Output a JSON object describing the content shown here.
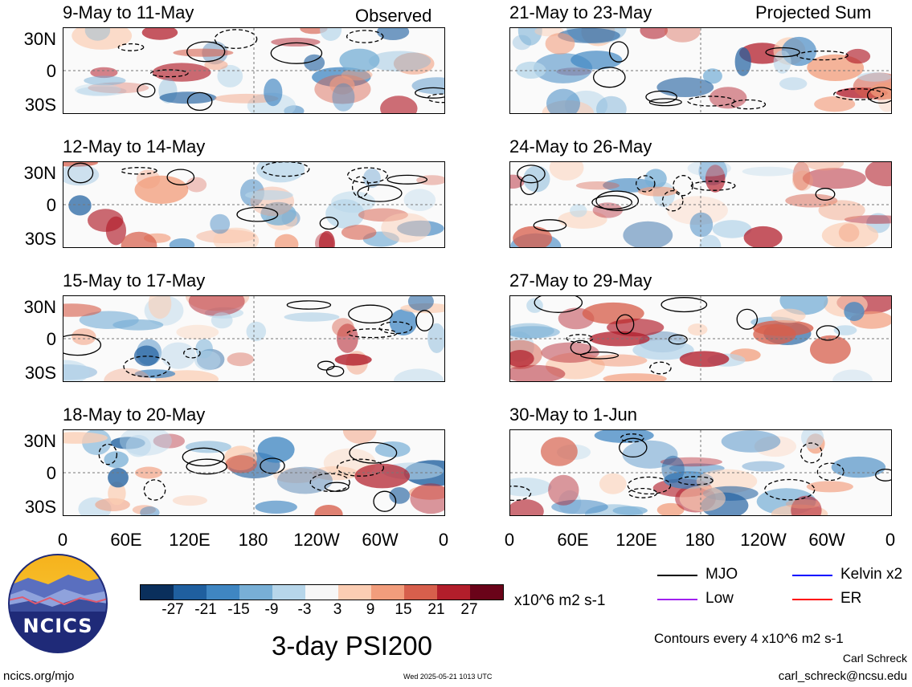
{
  "tags": {
    "observed": "Observed",
    "projected": "Projected Sum"
  },
  "panels_left": [
    "9-May to 11-May",
    "12-May to 14-May",
    "15-May to 17-May",
    "18-May to 20-May"
  ],
  "panels_right": [
    "21-May to 23-May",
    "24-May to 26-May",
    "27-May to 29-May",
    "30-May to 1-Jun"
  ],
  "lat_labels": [
    "30N",
    "0",
    "30S"
  ],
  "lon_labels": [
    "0",
    "60E",
    "120E",
    "180",
    "120W",
    "60W",
    "0"
  ],
  "colorbar": {
    "ticks": [
      "-27",
      "-21",
      "-15",
      "-9",
      "-3",
      "3",
      "9",
      "15",
      "21",
      "27"
    ],
    "units": "x10^6 m2 s-1",
    "colors": [
      "#0a2f5c",
      "#1f5f9f",
      "#3f86c2",
      "#78afd6",
      "#b7d6ea",
      "#f7f7f7",
      "#fbcdb3",
      "#f29d7c",
      "#d75f4c",
      "#b21e2b",
      "#6a0319"
    ]
  },
  "legend": {
    "mjo": "MJO",
    "kelvin": "Kelvin x2",
    "low": "Low",
    "er": "ER",
    "colors": {
      "mjo": "#000000",
      "kelvin": "#0000ff",
      "low": "#a020f0",
      "er": "#ff0000"
    }
  },
  "logo_text": "NCICS",
  "title": "3-day PSI200",
  "contours_note": "Contours every 4 x10^6 m2 s-1",
  "url": "ncics.org/mjo",
  "timestamp": "Wed 2025-05-21 1013 UTC",
  "author": "Carl Schreck",
  "email": "carl_schreck@ncsu.edu"
}
